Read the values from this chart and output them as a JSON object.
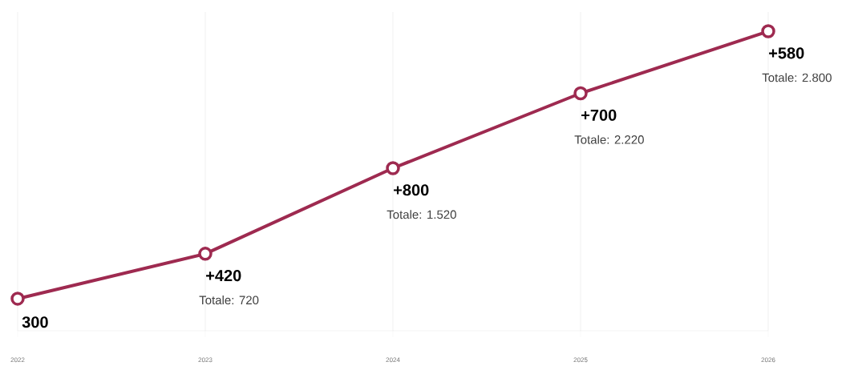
{
  "chart_data": {
    "type": "line",
    "categories": [
      "2022",
      "2023",
      "2024",
      "2025",
      "2026"
    ],
    "values": [
      300,
      720,
      1520,
      2220,
      2800
    ],
    "color": "#9e2a50",
    "marker": "circle",
    "line_style": "solid",
    "grid": "x",
    "ylim": [
      0,
      2980
    ],
    "value_labels": [
      "300",
      "Totale: 720",
      "Totale: 1.520",
      "Totale: 2.220",
      "Totale: 2.800"
    ],
    "annotations": [
      {
        "text": "+420",
        "x": "2023",
        "y": 720
      },
      {
        "text": "+800",
        "x": "2024",
        "y": 1520
      },
      {
        "text": "+700",
        "x": "2025",
        "y": 2220
      },
      {
        "text": "+580",
        "x": "2026",
        "y": 2800
      }
    ]
  }
}
